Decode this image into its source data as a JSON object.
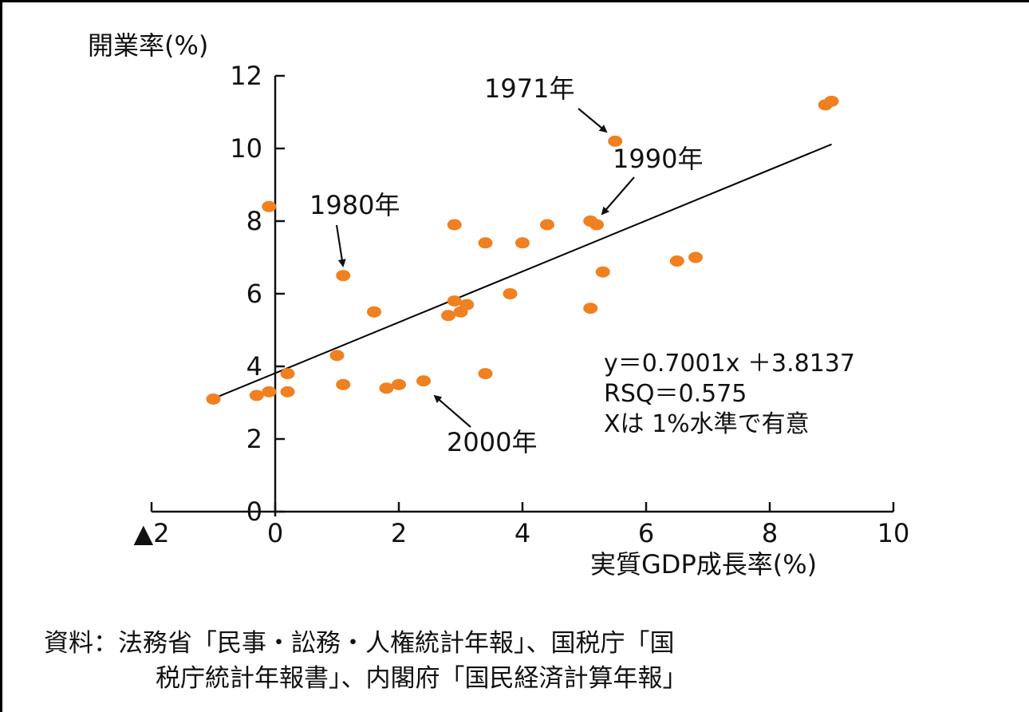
{
  "chart_data": {
    "type": "scatter",
    "ylabel": "開業率(%)",
    "xlabel": "実質GDP成長率(%)",
    "xlim": [
      -2,
      10
    ],
    "ylim": [
      0,
      12
    ],
    "x_tick_labels": [
      {
        "value": -2,
        "label": "▲2"
      },
      {
        "value": 0,
        "label": "0"
      },
      {
        "value": 2,
        "label": "2"
      },
      {
        "value": 4,
        "label": "4"
      },
      {
        "value": 6,
        "label": "6"
      },
      {
        "value": 8,
        "label": "8"
      },
      {
        "value": 10,
        "label": "10"
      }
    ],
    "y_tick_labels": [
      {
        "value": 0,
        "label": "0"
      },
      {
        "value": 2,
        "label": "2"
      },
      {
        "value": 4,
        "label": "4"
      },
      {
        "value": 6,
        "label": "6"
      },
      {
        "value": 8,
        "label": "8"
      },
      {
        "value": 10,
        "label": "10"
      },
      {
        "value": 12,
        "label": "12"
      }
    ],
    "points": [
      {
        "x": -1.0,
        "y": 3.1
      },
      {
        "x": -0.3,
        "y": 3.2
      },
      {
        "x": -0.1,
        "y": 3.3
      },
      {
        "x": -0.1,
        "y": 8.4
      },
      {
        "x": 0.2,
        "y": 3.3
      },
      {
        "x": 0.2,
        "y": 3.8
      },
      {
        "x": 1.0,
        "y": 4.3
      },
      {
        "x": 1.1,
        "y": 6.5
      },
      {
        "x": 1.1,
        "y": 3.5
      },
      {
        "x": 1.6,
        "y": 5.5
      },
      {
        "x": 1.8,
        "y": 3.4
      },
      {
        "x": 2.0,
        "y": 3.5
      },
      {
        "x": 2.4,
        "y": 3.6
      },
      {
        "x": 2.8,
        "y": 5.4
      },
      {
        "x": 2.9,
        "y": 5.8
      },
      {
        "x": 2.9,
        "y": 7.9
      },
      {
        "x": 3.0,
        "y": 5.5
      },
      {
        "x": 3.1,
        "y": 5.7
      },
      {
        "x": 3.4,
        "y": 7.4
      },
      {
        "x": 3.4,
        "y": 3.8
      },
      {
        "x": 3.8,
        "y": 6.0
      },
      {
        "x": 4.0,
        "y": 7.4
      },
      {
        "x": 4.4,
        "y": 7.9
      },
      {
        "x": 5.1,
        "y": 5.6
      },
      {
        "x": 5.1,
        "y": 8.0
      },
      {
        "x": 5.2,
        "y": 7.9
      },
      {
        "x": 5.3,
        "y": 6.6
      },
      {
        "x": 5.5,
        "y": 10.2
      },
      {
        "x": 6.5,
        "y": 6.9
      },
      {
        "x": 6.8,
        "y": 7.0
      },
      {
        "x": 8.9,
        "y": 11.2
      },
      {
        "x": 9.0,
        "y": 11.3
      }
    ],
    "trendline": {
      "slope": 0.7001,
      "intercept": 3.8137,
      "x_range": [
        -1.0,
        9.0
      ]
    },
    "annotations": [
      {
        "label": "1971年",
        "point": {
          "x": 5.5,
          "y": 10.2
        }
      },
      {
        "label": "1990年",
        "point": {
          "x": 5.1,
          "y": 8.0
        }
      },
      {
        "label": "1980年",
        "point": {
          "x": 1.1,
          "y": 6.5
        }
      },
      {
        "label": "2000年",
        "point": {
          "x": 2.4,
          "y": 3.6
        }
      }
    ],
    "equation_lines": [
      "y＝0.7001x ＋3.8137",
      "RSQ＝0.575",
      "Xは 1%水準で有意"
    ],
    "point_color": "#f08020",
    "line_color": "#000000",
    "grid": false,
    "legend": "none"
  },
  "source": {
    "line1": "資料：法務省「民事・訟務・人権統計年報」、国税庁「国",
    "line2": "税庁統計年報書」、内閣府「国民経済計算年報」"
  }
}
